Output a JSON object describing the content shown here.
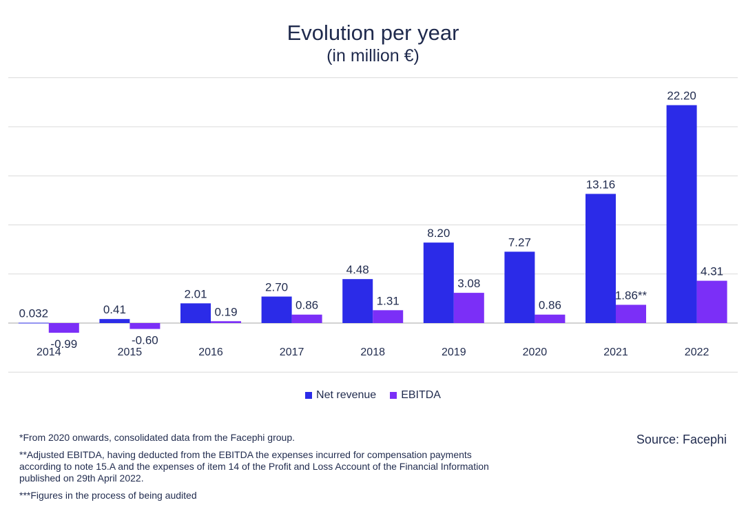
{
  "chart_data": {
    "type": "bar",
    "title": "Evolution per year",
    "subtitle": "(in million €)",
    "categories": [
      "2014",
      "2015",
      "2016",
      "2017",
      "2018",
      "2019",
      "2020",
      "2021",
      "2022"
    ],
    "series": [
      {
        "name": "Net revenue",
        "color": "#2b2be8",
        "values": [
          0.032,
          0.41,
          2.01,
          2.7,
          4.48,
          8.2,
          7.27,
          13.16,
          22.2
        ],
        "labels": [
          "0.032",
          "0.41",
          "2.01",
          "2.70",
          "4.48",
          "8.20",
          "7.27",
          "13.16",
          "22.20"
        ]
      },
      {
        "name": "EBITDA",
        "color": "#7b2ff7",
        "values": [
          -0.99,
          -0.6,
          0.19,
          0.86,
          1.31,
          3.08,
          0.86,
          1.86,
          4.31
        ],
        "labels": [
          "-0.99",
          "-0.60",
          "0.19",
          "0.86",
          "1.31",
          "3.08",
          "0.86",
          "1.86**",
          "4.31"
        ]
      }
    ],
    "ylim": [
      -5,
      25
    ],
    "grid": true,
    "legend_position": "bottom-center"
  },
  "notes": [
    "*From 2020 onwards, consolidated data from the Facephi group.",
    "**Adjusted EBITDA, having deducted from the EBITDA the expenses incurred for compensation payments according to note 15.A and the expenses of item 14 of the Profit and Loss Account of the Financial Information published on 29th April 2022.",
    "***Figures in the process of being audited"
  ],
  "source": "Source: Facephi"
}
